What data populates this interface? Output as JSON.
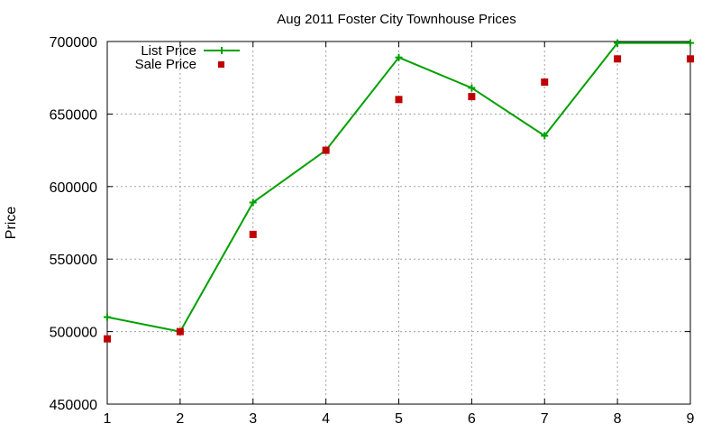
{
  "chart_data": {
    "type": "line",
    "title": "Aug 2011 Foster City Townhouse Prices",
    "xlabel": "",
    "ylabel": "Price",
    "xlim": [
      1,
      9
    ],
    "ylim": [
      450000,
      700000
    ],
    "x_ticks": [
      1,
      2,
      3,
      4,
      5,
      6,
      7,
      8,
      9
    ],
    "y_ticks": [
      450000,
      500000,
      550000,
      600000,
      650000,
      700000
    ],
    "grid": true,
    "legend_position": "top-left",
    "x": [
      1,
      2,
      3,
      4,
      5,
      6,
      7,
      8,
      9
    ],
    "series": [
      {
        "name": "List Price",
        "style": "linespoints",
        "marker": "plus",
        "color": "#00a000",
        "values": [
          510000,
          500000,
          589000,
          625000,
          689000,
          668000,
          635000,
          699000,
          699000
        ]
      },
      {
        "name": "Sale Price",
        "style": "points",
        "marker": "square",
        "color": "#c00000",
        "values": [
          495000,
          500000,
          567000,
          625000,
          660000,
          662000,
          672000,
          688000,
          688000
        ]
      }
    ]
  }
}
